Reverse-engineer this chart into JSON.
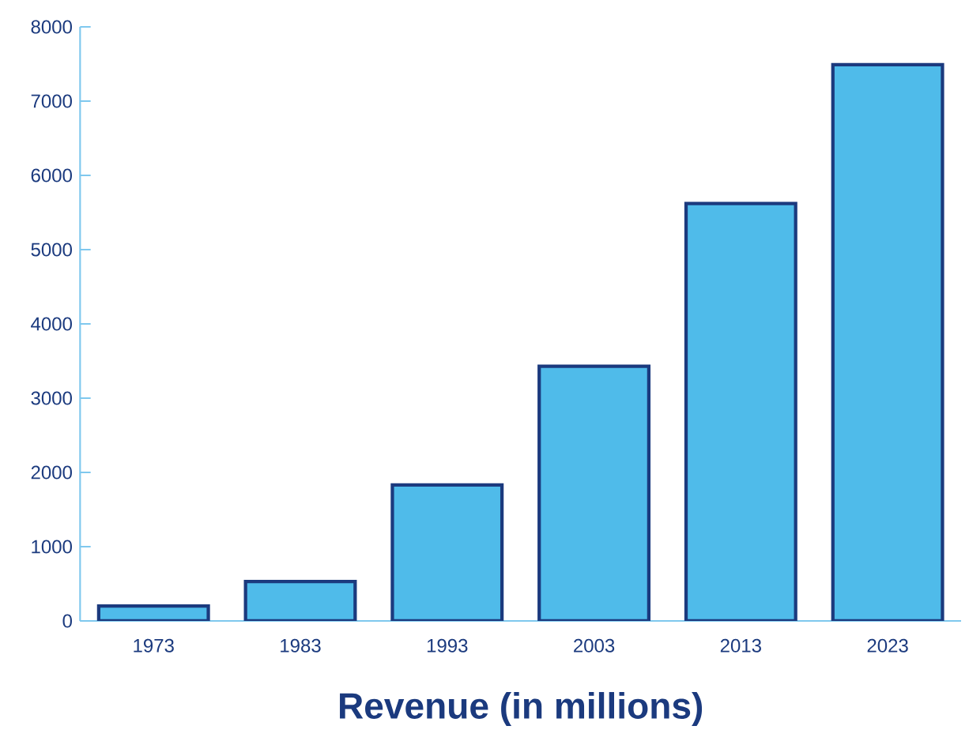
{
  "chart_data": {
    "type": "bar",
    "xlabel": "Revenue (in millions)",
    "categories": [
      "1973",
      "1983",
      "1993",
      "2003",
      "2013",
      "2023"
    ],
    "values": [
      200,
      530,
      1830,
      3430,
      5620,
      7490
    ],
    "color": "#4fbbea",
    "ylim": [
      0,
      8000
    ],
    "yticks": [
      0,
      1000,
      2000,
      3000,
      4000,
      5000,
      6000,
      7000,
      8000
    ]
  }
}
